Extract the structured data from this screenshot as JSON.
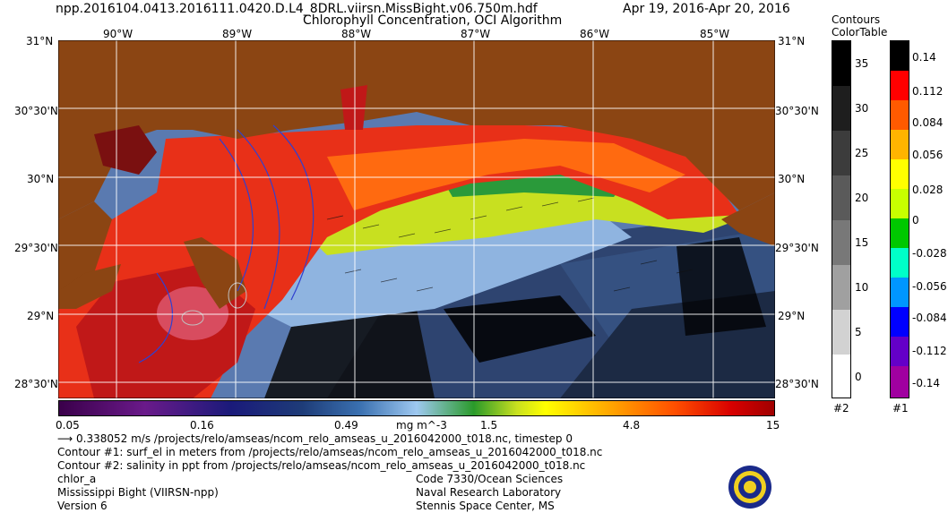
{
  "header": {
    "filename": "npp.2016104.0413.2016111.0420.D.L4_8DRL.viirsn.MissBight.v06.750m.hdf",
    "product": "Chlorophyll Concentration, OCI Algorithm",
    "dates": "Apr 19, 2016-Apr 20, 2016"
  },
  "map": {
    "lon_labels": [
      "90°W",
      "89°W",
      "88°W",
      "87°W",
      "86°W",
      "85°W"
    ],
    "lat_labels": [
      "31°N",
      "30°30'N",
      "30°N",
      "29°30'N",
      "29°N",
      "28°30'N"
    ],
    "colors": {
      "land": "#8b4513",
      "deep_water": "#4a6fa5",
      "shallow": "#e04020",
      "nodata": "#000000"
    }
  },
  "colorbar": {
    "ticks": [
      "0.05",
      "0.16",
      "0.49",
      "1.5",
      "4.8",
      "15"
    ],
    "units": "mg m^-3"
  },
  "legend_contours": {
    "title1": "Contours",
    "title2": "ColorTable",
    "values": [
      "35",
      "30",
      "25",
      "20",
      "15",
      "10",
      "5",
      "0"
    ],
    "id": "#2"
  },
  "legend_colortable": {
    "values": [
      "0.14",
      "0.112",
      "0.084",
      "0.056",
      "0.028",
      "0",
      "-0.028",
      "-0.056",
      "-0.084",
      "-0.112",
      "-0.14"
    ],
    "colors": [
      "#000000",
      "#ff0000",
      "#ff5a00",
      "#ffb400",
      "#ffff00",
      "#c8ff00",
      "#00c800",
      "#00ffc8",
      "#0096ff",
      "#0000ff",
      "#6400c8",
      "#a000a0"
    ],
    "id": "#1"
  },
  "footer": {
    "vector_note": "0.338052 m/s /projects/relo/amseas/ncom_relo_amseas_u_2016042000_t018.nc, timestep 0",
    "contour1": "Contour #1: surf_el in meters from /projects/relo/amseas/ncom_relo_amseas_u_2016042000_t018.nc",
    "contour2": "Contour #2: salinity in ppt from /projects/relo/amseas/ncom_relo_amseas_u_2016042000_t018.nc",
    "var": "chlor_a",
    "region": "Mississippi Bight (VIIRSN-npp)",
    "version": "Version 6",
    "org1": "Code 7330/Ocean Sciences",
    "org2": "Naval Research Laboratory",
    "org3": "Stennis Space Center, MS"
  }
}
